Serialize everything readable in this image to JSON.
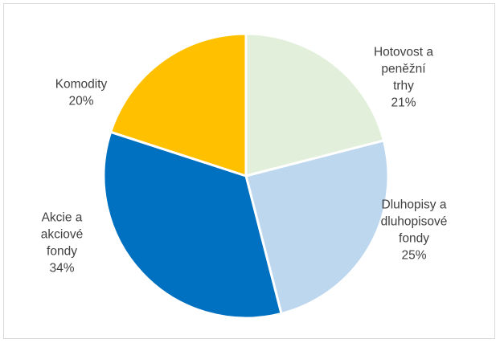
{
  "chart_data": {
    "type": "pie",
    "title": "",
    "slices": [
      {
        "label_lines": [
          "Hotovost a",
          "peněžní",
          "trhy"
        ],
        "percent_label": "21%",
        "value": 21,
        "color": "#e2efda"
      },
      {
        "label_lines": [
          "Dluhopisy a",
          "dluhopisové",
          "fondy"
        ],
        "percent_label": "25%",
        "value": 25,
        "color": "#bdd7ee"
      },
      {
        "label_lines": [
          "Akcie a",
          "akciové",
          "fondy"
        ],
        "percent_label": "34%",
        "value": 34,
        "color": "#0070c0"
      },
      {
        "label_lines": [
          "Komodity"
        ],
        "percent_label": "20%",
        "value": 20,
        "color": "#ffc000"
      }
    ],
    "start_angle": "top",
    "direction": "clockwise",
    "legend": "none",
    "data_labels": "outside"
  }
}
